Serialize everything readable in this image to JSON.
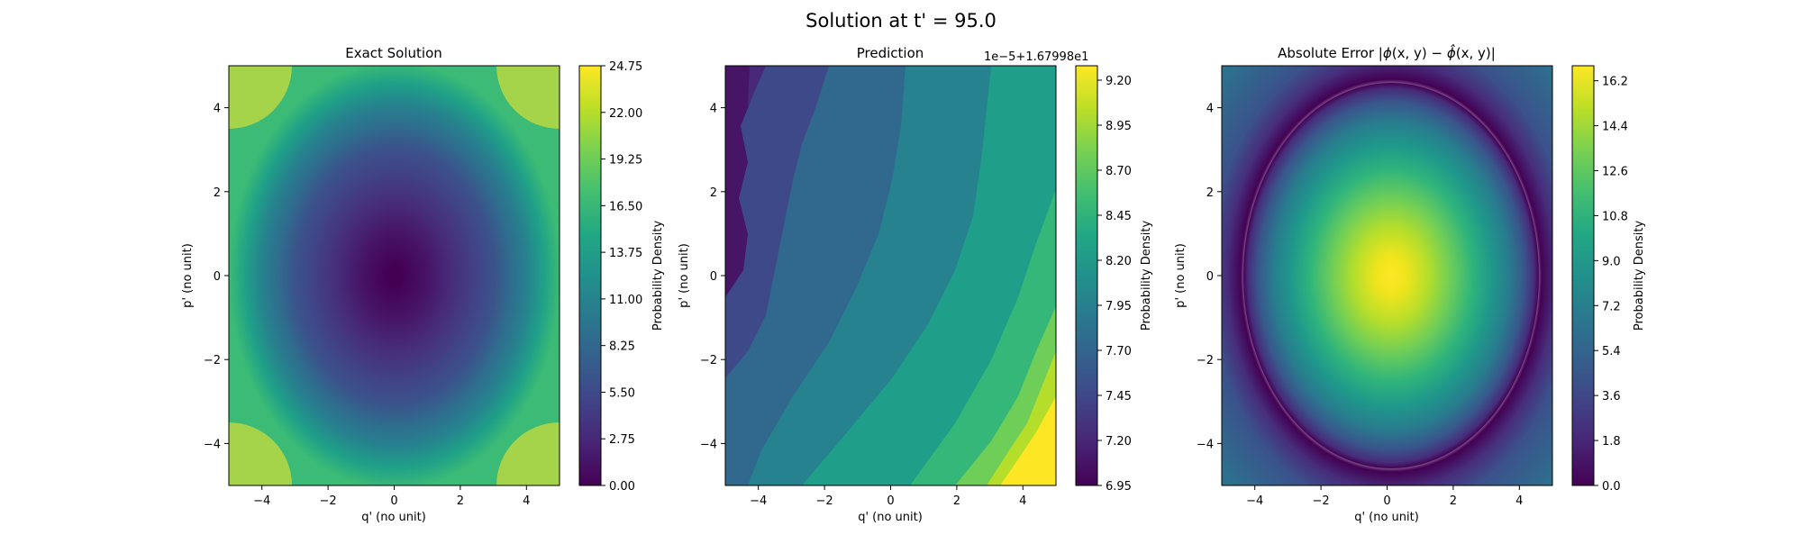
{
  "figure": {
    "title": "Solution at t' = 95.0"
  },
  "chart_data": [
    {
      "type": "heatmap",
      "title": "Exact Solution",
      "xlabel": "q' (no unit)",
      "ylabel": "p' (no unit)",
      "xlim": [
        -5,
        5
      ],
      "ylim": [
        -5,
        5
      ],
      "x_ticks": [
        -4,
        -2,
        0,
        2,
        4
      ],
      "y_ticks": [
        -4,
        -2,
        0,
        2,
        4
      ],
      "x_tick_labels": [
        "−4",
        "−2",
        "0",
        "2",
        "4"
      ],
      "y_tick_labels": [
        "−4",
        "−2",
        "0",
        "2",
        "4"
      ],
      "field": "paraboloid: value rises from 0.0 at (0,0) to about 24.75 at the corners",
      "center_value": 0.0,
      "corner_value": 24.75,
      "colormap": "viridis",
      "colorbar": {
        "label": "Probability Density",
        "range": [
          0.0,
          24.75
        ],
        "ticks": [
          0.0,
          2.75,
          5.5,
          8.25,
          11.0,
          13.75,
          16.5,
          19.25,
          22.0,
          24.75
        ],
        "tick_labels": [
          "0.00",
          "2.75",
          "5.50",
          "8.25",
          "11.00",
          "13.75",
          "16.50",
          "19.25",
          "22.00",
          "24.75"
        ]
      }
    },
    {
      "type": "heatmap",
      "title": "Prediction",
      "xlabel": "q' (no unit)",
      "ylabel": "p' (no unit)",
      "xlim": [
        -5,
        5
      ],
      "ylim": [
        -5,
        5
      ],
      "x_ticks": [
        -4,
        -2,
        0,
        2,
        4
      ],
      "y_ticks": [
        -4,
        -2,
        0,
        2,
        4
      ],
      "x_tick_labels": [
        "−4",
        "−2",
        "0",
        "2",
        "4"
      ],
      "y_tick_labels": [
        "−4",
        "−2",
        "0",
        "2",
        "4"
      ],
      "field": "filled contours (offset units): ~7.0 at top-left rising diagonally to ~9.2 at bottom-right",
      "min_value_top_left": 6.95,
      "max_value_bottom_right": 9.2,
      "colormap": "viridis",
      "colorbar": {
        "label": "Probability Density",
        "offset_label": "1e−5+1.67998e1",
        "range": [
          6.95,
          9.28
        ],
        "ticks": [
          6.95,
          7.2,
          7.45,
          7.7,
          7.95,
          8.2,
          8.45,
          8.7,
          8.95,
          9.2
        ],
        "tick_labels": [
          "6.95",
          "7.20",
          "7.45",
          "7.70",
          "7.95",
          "8.20",
          "8.45",
          "8.70",
          "8.95",
          "9.20"
        ]
      }
    },
    {
      "type": "heatmap",
      "title": "Absolute Error |ϕ(x, y) − ϕ̂(x, y)|",
      "title_parts": {
        "prefix": "Absolute Error |",
        "phi": "ϕ",
        "args1": "(x, y) − ",
        "phi_hat": "ϕ̂",
        "args2": "(x, y)|"
      },
      "xlabel": "q' (no unit)",
      "ylabel": "p' (no unit)",
      "xlim": [
        -5,
        5
      ],
      "ylim": [
        -5,
        5
      ],
      "x_ticks": [
        -4,
        -2,
        0,
        2,
        4
      ],
      "y_ticks": [
        -4,
        -2,
        0,
        2,
        4
      ],
      "x_tick_labels": [
        "−4",
        "−2",
        "0",
        "2",
        "4"
      ],
      "y_tick_labels": [
        "−4",
        "−2",
        "0",
        "2",
        "4"
      ],
      "field": "absolute difference: ~16.8 at centre, falling to 0 on a ring of radius ~5.8, rising again toward corners",
      "center_value": 16.8,
      "colormap": "viridis",
      "colorbar": {
        "label": "Probability Density",
        "range": [
          0.0,
          16.8
        ],
        "ticks": [
          0.0,
          1.8,
          3.6,
          5.4,
          7.2,
          9.0,
          10.8,
          12.6,
          14.4,
          16.2
        ],
        "tick_labels": [
          "0.0",
          "1.8",
          "3.6",
          "5.4",
          "7.2",
          "9.0",
          "10.8",
          "12.6",
          "14.4",
          "16.2"
        ]
      }
    }
  ]
}
